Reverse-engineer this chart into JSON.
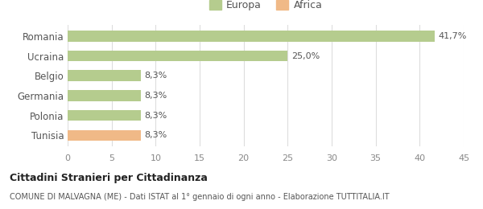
{
  "categories": [
    "Romania",
    "Ucraina",
    "Belgio",
    "Germania",
    "Polonia",
    "Tunisia"
  ],
  "values": [
    41.7,
    25.0,
    8.3,
    8.3,
    8.3,
    8.3
  ],
  "labels": [
    "41,7%",
    "25,0%",
    "8,3%",
    "8,3%",
    "8,3%",
    "8,3%"
  ],
  "bar_colors": [
    "#b5cc8e",
    "#b5cc8e",
    "#b5cc8e",
    "#b5cc8e",
    "#b5cc8e",
    "#f0b987"
  ],
  "europa_color": "#b5cc8e",
  "africa_color": "#f0b987",
  "xlim": [
    0,
    45
  ],
  "xticks": [
    0,
    5,
    10,
    15,
    20,
    25,
    30,
    35,
    40,
    45
  ],
  "title": "Cittadini Stranieri per Cittadinanza",
  "subtitle": "COMUNE DI MALVAGNA (ME) - Dati ISTAT al 1° gennaio di ogni anno - Elaborazione TUTTITALIA.IT",
  "legend_labels": [
    "Europa",
    "Africa"
  ],
  "background_color": "#ffffff",
  "grid_color": "#dddddd"
}
